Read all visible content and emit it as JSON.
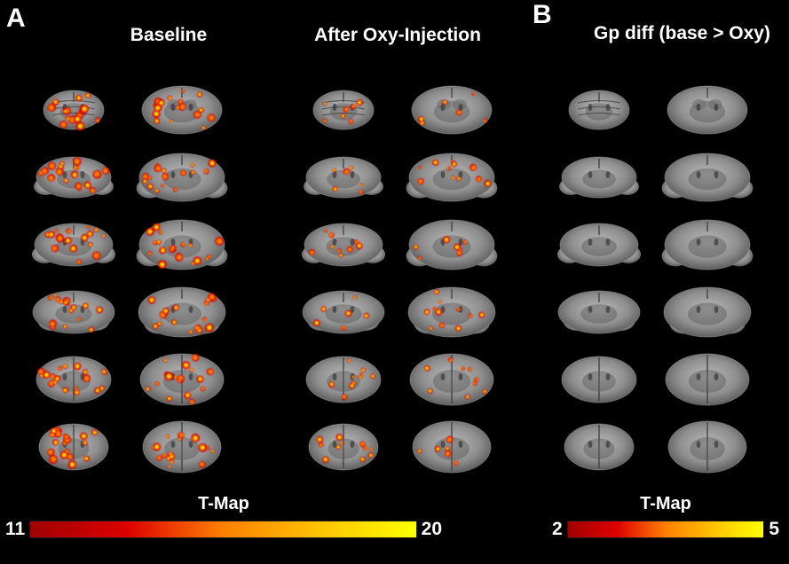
{
  "panels": {
    "a": {
      "label": "A",
      "columns": [
        {
          "id": "baseline",
          "title": "Baseline"
        },
        {
          "id": "after_oxy",
          "title": "After Oxy-Injection"
        }
      ]
    },
    "b": {
      "label": "B",
      "title": "Gp diff (base > Oxy)"
    }
  },
  "colorbars": {
    "left": {
      "title": "T-Map",
      "min": "11",
      "max": "20"
    },
    "right": {
      "title": "T-Map",
      "min": "2",
      "max": "5"
    }
  },
  "colors": {
    "background": "#000000",
    "text": "#ffffff",
    "heat_low": "#dd0000",
    "heat_mid": "#ff8000",
    "heat_high": "#ffff00",
    "brain_gray": "#8e8e8e"
  },
  "grids": {
    "rows": 6,
    "cols": 2,
    "groups": [
      {
        "id": "baseline",
        "overlay": "strong"
      },
      {
        "id": "after_oxy",
        "overlay": "moderate"
      },
      {
        "id": "gp_diff",
        "overlay": "none"
      }
    ]
  }
}
